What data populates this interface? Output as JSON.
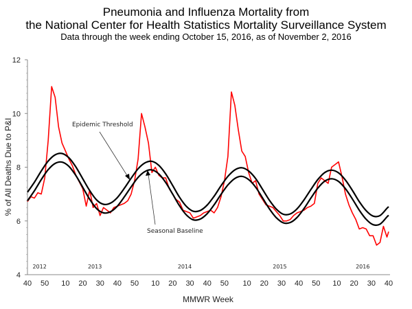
{
  "chart_data": {
    "type": "line",
    "title": [
      "Pneumonia and Influenza Mortality from",
      "the National Center for Health Statistics Mortality Surveillance System"
    ],
    "subtitle": "Data through the week ending October 15, 2016, as of November 2, 2016",
    "xlabel": "MMWR Week",
    "ylabel": "% of All Deaths Due to P&I",
    "ylim": [
      4,
      12
    ],
    "xlim": [
      "2012-40",
      "2016-40"
    ],
    "grid": false,
    "y_ticks": [
      "4",
      "6",
      "8",
      "10",
      "12"
    ],
    "x_ticks": [
      {
        "week": "2012-40",
        "label": "40"
      },
      {
        "week": "2012-50",
        "label": "50"
      },
      {
        "week": "2013-10",
        "label": "10"
      },
      {
        "week": "2013-20",
        "label": "20"
      },
      {
        "week": "2013-30",
        "label": "30"
      },
      {
        "week": "2013-40",
        "label": "40"
      },
      {
        "week": "2013-50",
        "label": "50"
      },
      {
        "week": "2014-10",
        "label": "10"
      },
      {
        "week": "2014-20",
        "label": "20"
      },
      {
        "week": "2014-30",
        "label": "30"
      },
      {
        "week": "2014-40",
        "label": "40"
      },
      {
        "week": "2014-50",
        "label": "50"
      },
      {
        "week": "2015-10",
        "label": "10"
      },
      {
        "week": "2015-20",
        "label": "20"
      },
      {
        "week": "2015-30",
        "label": "30"
      },
      {
        "week": "2015-40",
        "label": "40"
      },
      {
        "week": "2015-50",
        "label": "50"
      },
      {
        "week": "2016-10",
        "label": "10"
      },
      {
        "week": "2016-20",
        "label": "20"
      },
      {
        "week": "2016-30",
        "label": "30"
      },
      {
        "week": "2016-40",
        "label": "40"
      }
    ],
    "year_labels": [
      {
        "week": "2012-47",
        "label": "2012"
      },
      {
        "week": "2013-27",
        "label": "2013"
      },
      {
        "week": "2014-27",
        "label": "2014"
      },
      {
        "week": "2015-29",
        "label": "2015"
      },
      {
        "week": "2016-25",
        "label": "2016"
      }
    ],
    "annotations": {
      "threshold": "Epidemic Threshold",
      "baseline": "Seasonal Baseline"
    },
    "series": [
      {
        "key": "observed",
        "color": "#ff0000",
        "x": [
          "2012-40",
          "2012-42",
          "2012-44",
          "2012-46",
          "2012-48",
          "2012-50",
          "2012-52",
          "2013-02",
          "2013-04",
          "2013-06",
          "2013-08",
          "2013-10",
          "2013-12",
          "2013-14",
          "2013-16",
          "2013-18",
          "2013-20",
          "2013-22",
          "2013-24",
          "2013-26",
          "2013-28",
          "2013-30",
          "2013-32",
          "2013-34",
          "2013-36",
          "2013-38",
          "2013-40",
          "2013-42",
          "2013-44",
          "2013-46",
          "2013-48",
          "2013-50",
          "2013-52",
          "2014-02",
          "2014-04",
          "2014-06",
          "2014-08",
          "2014-10",
          "2014-12",
          "2014-14",
          "2014-16",
          "2014-18",
          "2014-20",
          "2014-22",
          "2014-24",
          "2014-26",
          "2014-28",
          "2014-30",
          "2014-32",
          "2014-34",
          "2014-36",
          "2014-38",
          "2014-40",
          "2014-42",
          "2014-44",
          "2014-46",
          "2014-48",
          "2014-50",
          "2014-52",
          "2015-01",
          "2015-03",
          "2015-05",
          "2015-07",
          "2015-09",
          "2015-11",
          "2015-13",
          "2015-15",
          "2015-17",
          "2015-19",
          "2015-21",
          "2015-23",
          "2015-25",
          "2015-27",
          "2015-29",
          "2015-31",
          "2015-33",
          "2015-35",
          "2015-37",
          "2015-39",
          "2015-41",
          "2015-43",
          "2015-45",
          "2015-47",
          "2015-49",
          "2015-51",
          "2016-01",
          "2016-03",
          "2016-05",
          "2016-07",
          "2016-09",
          "2016-11",
          "2016-13",
          "2016-15",
          "2016-17",
          "2016-19",
          "2016-21",
          "2016-23",
          "2016-25",
          "2016-27",
          "2016-29",
          "2016-31",
          "2016-33",
          "2016-35",
          "2016-37",
          "2016-39",
          "2016-40"
        ],
        "values": [
          6.72,
          6.9,
          6.85,
          7.05,
          7.0,
          7.6,
          9.0,
          11.0,
          10.6,
          9.5,
          8.9,
          8.6,
          8.3,
          8.05,
          7.7,
          7.45,
          7.2,
          6.55,
          7.15,
          6.5,
          6.65,
          6.2,
          6.5,
          6.4,
          6.3,
          6.5,
          6.55,
          6.6,
          6.65,
          6.75,
          7.0,
          7.5,
          8.3,
          10.0,
          9.5,
          8.9,
          7.8,
          8.0,
          7.7,
          7.6,
          7.6,
          7.2,
          7.0,
          6.8,
          6.7,
          6.4,
          6.35,
          6.3,
          6.1,
          6.15,
          6.2,
          6.3,
          6.35,
          6.4,
          6.3,
          6.5,
          6.9,
          7.5,
          8.4,
          10.8,
          10.3,
          9.4,
          8.6,
          8.4,
          7.8,
          7.4,
          7.5,
          7.0,
          6.8,
          6.6,
          6.55,
          6.5,
          6.35,
          6.2,
          6.0,
          6.0,
          6.05,
          6.2,
          6.3,
          6.35,
          6.4,
          6.5,
          6.55,
          6.65,
          7.4,
          7.6,
          7.5,
          7.4,
          8.0,
          8.1,
          8.2,
          7.65,
          7.0,
          6.6,
          6.3,
          6.05,
          5.7,
          5.75,
          5.7,
          5.45,
          5.45,
          5.1,
          5.2,
          5.8,
          5.4,
          5.6
        ]
      },
      {
        "key": "baseline",
        "name": "Seasonal Baseline",
        "color": "#000000",
        "x": [
          "2012-40",
          "2012-44",
          "2012-48",
          "2012-52",
          "2013-04",
          "2013-08",
          "2013-12",
          "2013-16",
          "2013-20",
          "2013-24",
          "2013-28",
          "2013-32",
          "2013-36",
          "2013-40",
          "2013-44",
          "2013-48",
          "2013-52",
          "2014-04",
          "2014-08",
          "2014-12",
          "2014-16",
          "2014-20",
          "2014-24",
          "2014-28",
          "2014-32",
          "2014-36",
          "2014-40",
          "2014-44",
          "2014-48",
          "2014-52",
          "2015-03",
          "2015-07",
          "2015-11",
          "2015-15",
          "2015-19",
          "2015-23",
          "2015-27",
          "2015-31",
          "2015-35",
          "2015-39",
          "2015-43",
          "2015-47",
          "2015-51",
          "2016-03",
          "2016-07",
          "2016-11",
          "2016-15",
          "2016-19",
          "2016-23",
          "2016-27",
          "2016-31",
          "2016-35",
          "2016-39",
          "2016-40"
        ],
        "values": [
          6.75,
          7.12,
          7.54,
          7.91,
          8.14,
          8.19,
          8.03,
          7.69,
          7.25,
          6.81,
          6.46,
          6.3,
          6.34,
          6.55,
          6.89,
          7.27,
          7.62,
          7.84,
          7.9,
          7.75,
          7.43,
          7.0,
          6.56,
          6.22,
          6.04,
          6.07,
          6.27,
          6.6,
          6.99,
          7.34,
          7.58,
          7.66,
          7.54,
          7.26,
          6.86,
          6.45,
          6.12,
          5.93,
          5.94,
          6.13,
          6.46,
          6.85,
          7.22,
          7.48,
          7.57,
          7.47,
          7.2,
          6.82,
          6.4,
          6.06,
          5.86,
          5.88,
          6.15,
          6.21
        ]
      },
      {
        "key": "threshold",
        "name": "Epidemic Threshold",
        "color": "#000000",
        "x": [
          "2012-40",
          "2012-44",
          "2012-48",
          "2012-52",
          "2013-04",
          "2013-08",
          "2013-12",
          "2013-16",
          "2013-20",
          "2013-24",
          "2013-28",
          "2013-32",
          "2013-36",
          "2013-40",
          "2013-44",
          "2013-48",
          "2013-52",
          "2014-04",
          "2014-08",
          "2014-12",
          "2014-16",
          "2014-20",
          "2014-24",
          "2014-28",
          "2014-32",
          "2014-36",
          "2014-40",
          "2014-44",
          "2014-48",
          "2014-52",
          "2015-03",
          "2015-07",
          "2015-11",
          "2015-15",
          "2015-19",
          "2015-23",
          "2015-27",
          "2015-31",
          "2015-35",
          "2015-39",
          "2015-43",
          "2015-47",
          "2015-51",
          "2016-03",
          "2016-07",
          "2016-11",
          "2016-15",
          "2016-19",
          "2016-23",
          "2016-27",
          "2016-31",
          "2016-35",
          "2016-39",
          "2016-40"
        ],
        "values": [
          7.07,
          7.44,
          7.86,
          8.23,
          8.46,
          8.51,
          8.35,
          8.01,
          7.57,
          7.13,
          6.78,
          6.62,
          6.66,
          6.87,
          7.21,
          7.59,
          7.94,
          8.16,
          8.22,
          8.07,
          7.75,
          7.32,
          6.88,
          6.54,
          6.36,
          6.39,
          6.59,
          6.92,
          7.31,
          7.66,
          7.9,
          7.98,
          7.86,
          7.58,
          7.18,
          6.77,
          6.44,
          6.25,
          6.26,
          6.45,
          6.78,
          7.17,
          7.54,
          7.8,
          7.89,
          7.79,
          7.52,
          7.14,
          6.72,
          6.38,
          6.18,
          6.2,
          6.47,
          6.53
        ]
      }
    ]
  }
}
